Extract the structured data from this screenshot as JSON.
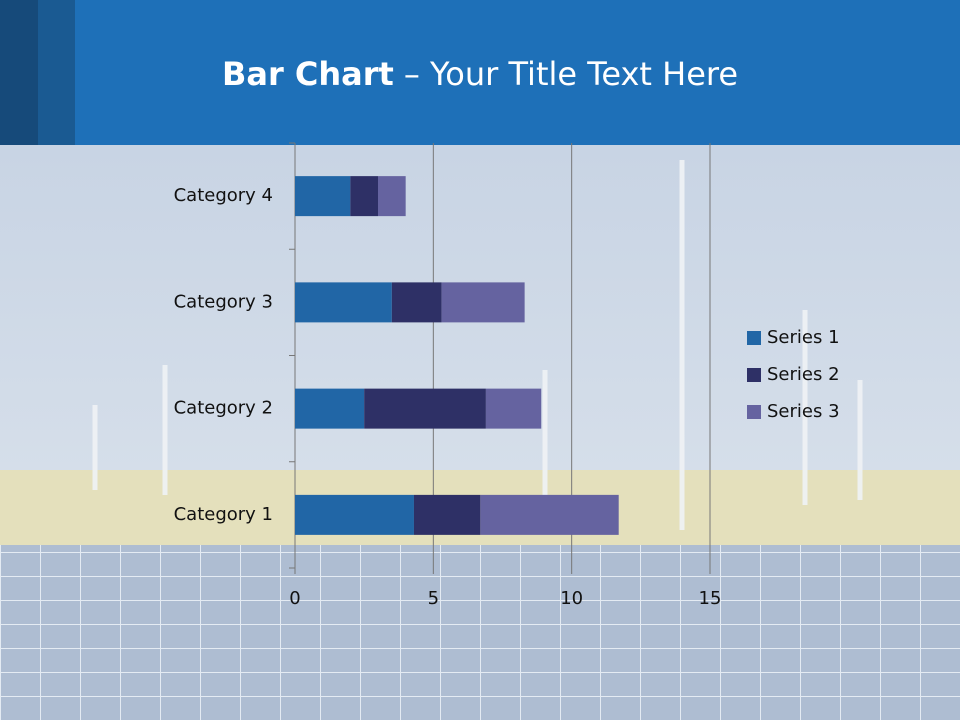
{
  "chart_data": {
    "type": "stacked-bar-horizontal",
    "title": [
      "Bar Chart",
      "– Your Title Text Here"
    ],
    "categories": [
      "Category 1",
      "Category 2",
      "Category 3",
      "Category 4"
    ],
    "series": [
      {
        "name": "Series 1",
        "color": "#2166a6",
        "values": [
          4.3,
          2.5,
          3.5,
          2
        ]
      },
      {
        "name": "Series 2",
        "color": "#2e3066",
        "values": [
          2.4,
          4.4,
          1.8,
          1
        ]
      },
      {
        "name": "Series 3",
        "color": "#6563a0",
        "values": [
          5,
          2,
          3,
          1
        ]
      }
    ],
    "xlim": [
      0,
      15
    ],
    "xticks": [
      0,
      5,
      10,
      15
    ],
    "grid": true,
    "legend": "right"
  }
}
